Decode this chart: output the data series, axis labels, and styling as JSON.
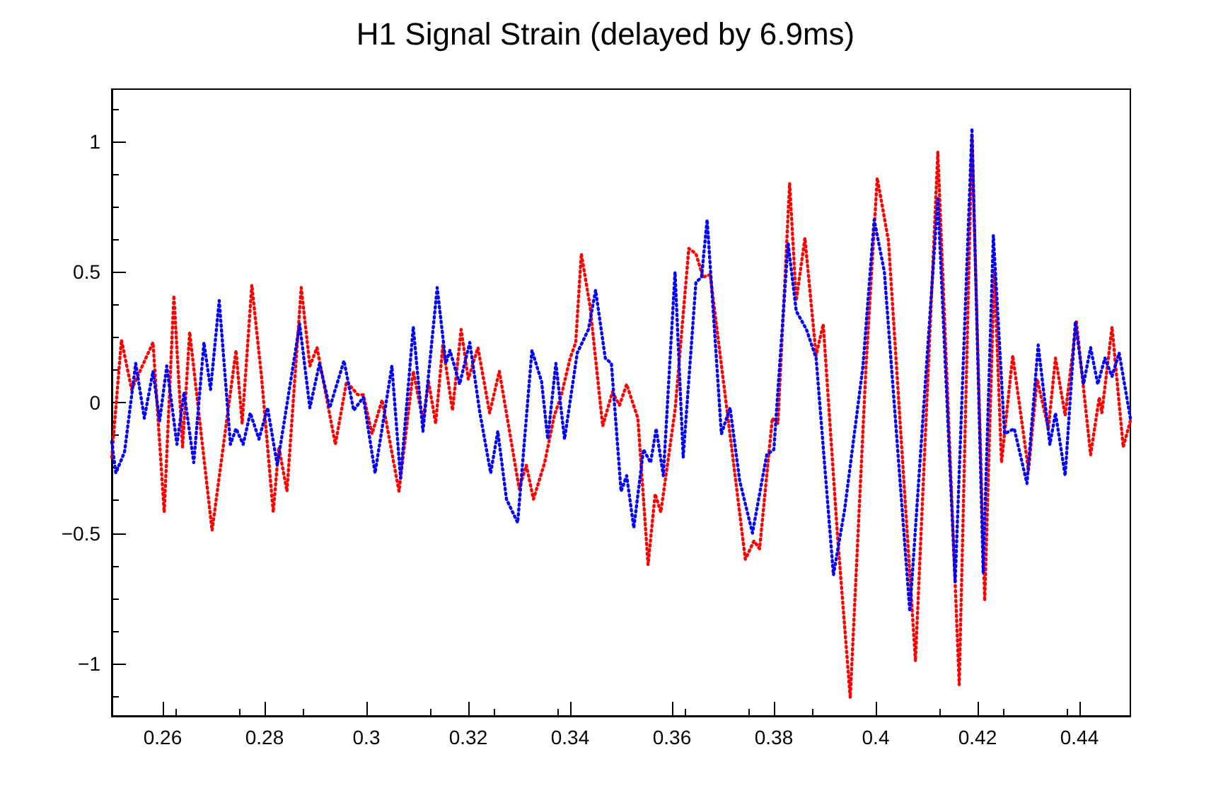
{
  "chart_data": {
    "type": "line",
    "title": "H1 Signal Strain (delayed by 6.9ms)",
    "xlim": [
      0.25,
      0.45
    ],
    "xticks": [
      0.26,
      0.28,
      0.3,
      0.32,
      0.34,
      0.36,
      0.38,
      0.4,
      0.42,
      0.44
    ],
    "ylim": [
      -1.2,
      1.2
    ],
    "yticks": [
      {
        "value": -1,
        "label": "−1"
      },
      {
        "value": -0.5,
        "label": "−0.5"
      },
      0,
      0.5,
      1
    ],
    "grid": false,
    "marker": "none",
    "line_style": "dotted",
    "series": [
      {
        "color": "#ff0000",
        "x": [
          0.25,
          0.2519,
          0.2539,
          0.2581,
          0.2603,
          0.2622,
          0.2639,
          0.2653,
          0.2697,
          0.2744,
          0.2756,
          0.2775,
          0.2794,
          0.2817,
          0.2828,
          0.2844,
          0.2872,
          0.2889,
          0.2903,
          0.2939,
          0.2961,
          0.2983,
          0.2994,
          0.3011,
          0.3031,
          0.3064,
          0.3092,
          0.3111,
          0.3122,
          0.3136,
          0.315,
          0.3169,
          0.3186,
          0.32,
          0.3219,
          0.3242,
          0.3261,
          0.33,
          0.3314,
          0.3328,
          0.335,
          0.3369,
          0.3383,
          0.34,
          0.3411,
          0.3422,
          0.3439,
          0.3464,
          0.3483,
          0.3497,
          0.3511,
          0.3533,
          0.3553,
          0.3567,
          0.3578,
          0.3606,
          0.3633,
          0.3647,
          0.3661,
          0.3675,
          0.3717,
          0.3744,
          0.3761,
          0.3772,
          0.3797,
          0.3808,
          0.3831,
          0.3844,
          0.3861,
          0.3883,
          0.3897,
          0.3925,
          0.395,
          0.3981,
          0.4003,
          0.4025,
          0.4078,
          0.4122,
          0.4164,
          0.4189,
          0.4214,
          0.4233,
          0.4247,
          0.4269,
          0.43,
          0.4317,
          0.4339,
          0.4353,
          0.4372,
          0.4394,
          0.4422,
          0.4439,
          0.4444,
          0.4464,
          0.4486,
          0.45
        ],
        "values": [
          -0.21,
          0.24,
          0.05,
          0.23,
          -0.42,
          0.41,
          -0.17,
          0.27,
          -0.49,
          0.2,
          -0.08,
          0.45,
          0.1,
          -0.42,
          -0.17,
          -0.34,
          0.44,
          0.14,
          0.21,
          -0.16,
          0.08,
          0.03,
          0.03,
          -0.12,
          0.01,
          -0.34,
          0.12,
          -0.07,
          0.08,
          -0.08,
          0.22,
          -0.03,
          0.28,
          0.09,
          0.21,
          -0.04,
          0.12,
          -0.33,
          -0.24,
          -0.37,
          -0.23,
          -0.05,
          0.03,
          0.17,
          0.23,
          0.57,
          0.37,
          -0.09,
          0.04,
          -0.01,
          0.07,
          -0.06,
          -0.62,
          -0.35,
          -0.42,
          -0.03,
          0.59,
          0.57,
          0.48,
          0.49,
          -0.17,
          -0.6,
          -0.53,
          -0.56,
          -0.06,
          -0.08,
          0.84,
          0.39,
          0.63,
          0.18,
          0.3,
          -0.51,
          -1.13,
          0.14,
          0.86,
          0.62,
          -0.99,
          0.96,
          -1.08,
          1.02,
          -0.76,
          0.51,
          -0.23,
          0.18,
          -0.26,
          0.09,
          -0.1,
          0.17,
          -0.05,
          0.31,
          -0.2,
          0.02,
          -0.04,
          0.29,
          -0.17,
          -0.07
        ]
      },
      {
        "color": "#0000ff",
        "x": [
          0.25,
          0.2508,
          0.2525,
          0.2547,
          0.2564,
          0.2581,
          0.2594,
          0.2608,
          0.2628,
          0.2642,
          0.2661,
          0.2681,
          0.2694,
          0.2711,
          0.2733,
          0.2744,
          0.2758,
          0.2772,
          0.2789,
          0.2806,
          0.2825,
          0.2869,
          0.2889,
          0.2908,
          0.2928,
          0.2956,
          0.2975,
          0.2994,
          0.3017,
          0.305,
          0.3067,
          0.3092,
          0.3111,
          0.3139,
          0.3156,
          0.3164,
          0.3183,
          0.3203,
          0.3222,
          0.3244,
          0.3258,
          0.3275,
          0.3297,
          0.3325,
          0.3344,
          0.3356,
          0.3372,
          0.3389,
          0.3414,
          0.3436,
          0.345,
          0.3469,
          0.3481,
          0.35,
          0.3511,
          0.3525,
          0.3544,
          0.3558,
          0.3569,
          0.3583,
          0.3606,
          0.3622,
          0.3647,
          0.3658,
          0.3669,
          0.3697,
          0.3714,
          0.3733,
          0.3758,
          0.3786,
          0.38,
          0.3828,
          0.3844,
          0.3864,
          0.3883,
          0.3917,
          0.3939,
          0.3975,
          0.3997,
          0.4017,
          0.4067,
          0.4122,
          0.4156,
          0.4189,
          0.4211,
          0.4231,
          0.4253,
          0.4272,
          0.4297,
          0.4319,
          0.4342,
          0.4353,
          0.4372,
          0.4392,
          0.4408,
          0.4422,
          0.4436,
          0.445,
          0.4464,
          0.4478,
          0.45
        ],
        "values": [
          -0.15,
          -0.27,
          -0.19,
          0.15,
          -0.06,
          0.12,
          -0.07,
          0.14,
          -0.16,
          0.04,
          -0.23,
          0.23,
          0.05,
          0.39,
          -0.16,
          -0.1,
          -0.16,
          -0.04,
          -0.14,
          -0.02,
          -0.24,
          0.3,
          -0.02,
          0.15,
          -0.02,
          0.16,
          -0.03,
          0.02,
          -0.27,
          0.14,
          -0.29,
          0.29,
          -0.11,
          0.44,
          0.15,
          0.2,
          0.07,
          0.23,
          -0.03,
          -0.27,
          -0.11,
          -0.37,
          -0.46,
          0.2,
          0.08,
          -0.14,
          0.15,
          -0.14,
          0.19,
          0.28,
          0.43,
          0.17,
          0.15,
          -0.34,
          -0.28,
          -0.48,
          -0.18,
          -0.23,
          -0.1,
          -0.28,
          0.5,
          -0.21,
          0.46,
          0.48,
          0.7,
          -0.12,
          -0.02,
          -0.3,
          -0.5,
          -0.2,
          -0.18,
          0.61,
          0.35,
          0.28,
          0.17,
          -0.66,
          -0.41,
          0.14,
          0.7,
          0.5,
          -0.8,
          0.78,
          -0.69,
          1.05,
          -0.65,
          0.64,
          -0.12,
          -0.1,
          -0.31,
          0.22,
          -0.16,
          -0.04,
          -0.28,
          0.31,
          0.07,
          0.21,
          0.07,
          0.17,
          0.1,
          0.19,
          -0.06
        ]
      }
    ]
  }
}
